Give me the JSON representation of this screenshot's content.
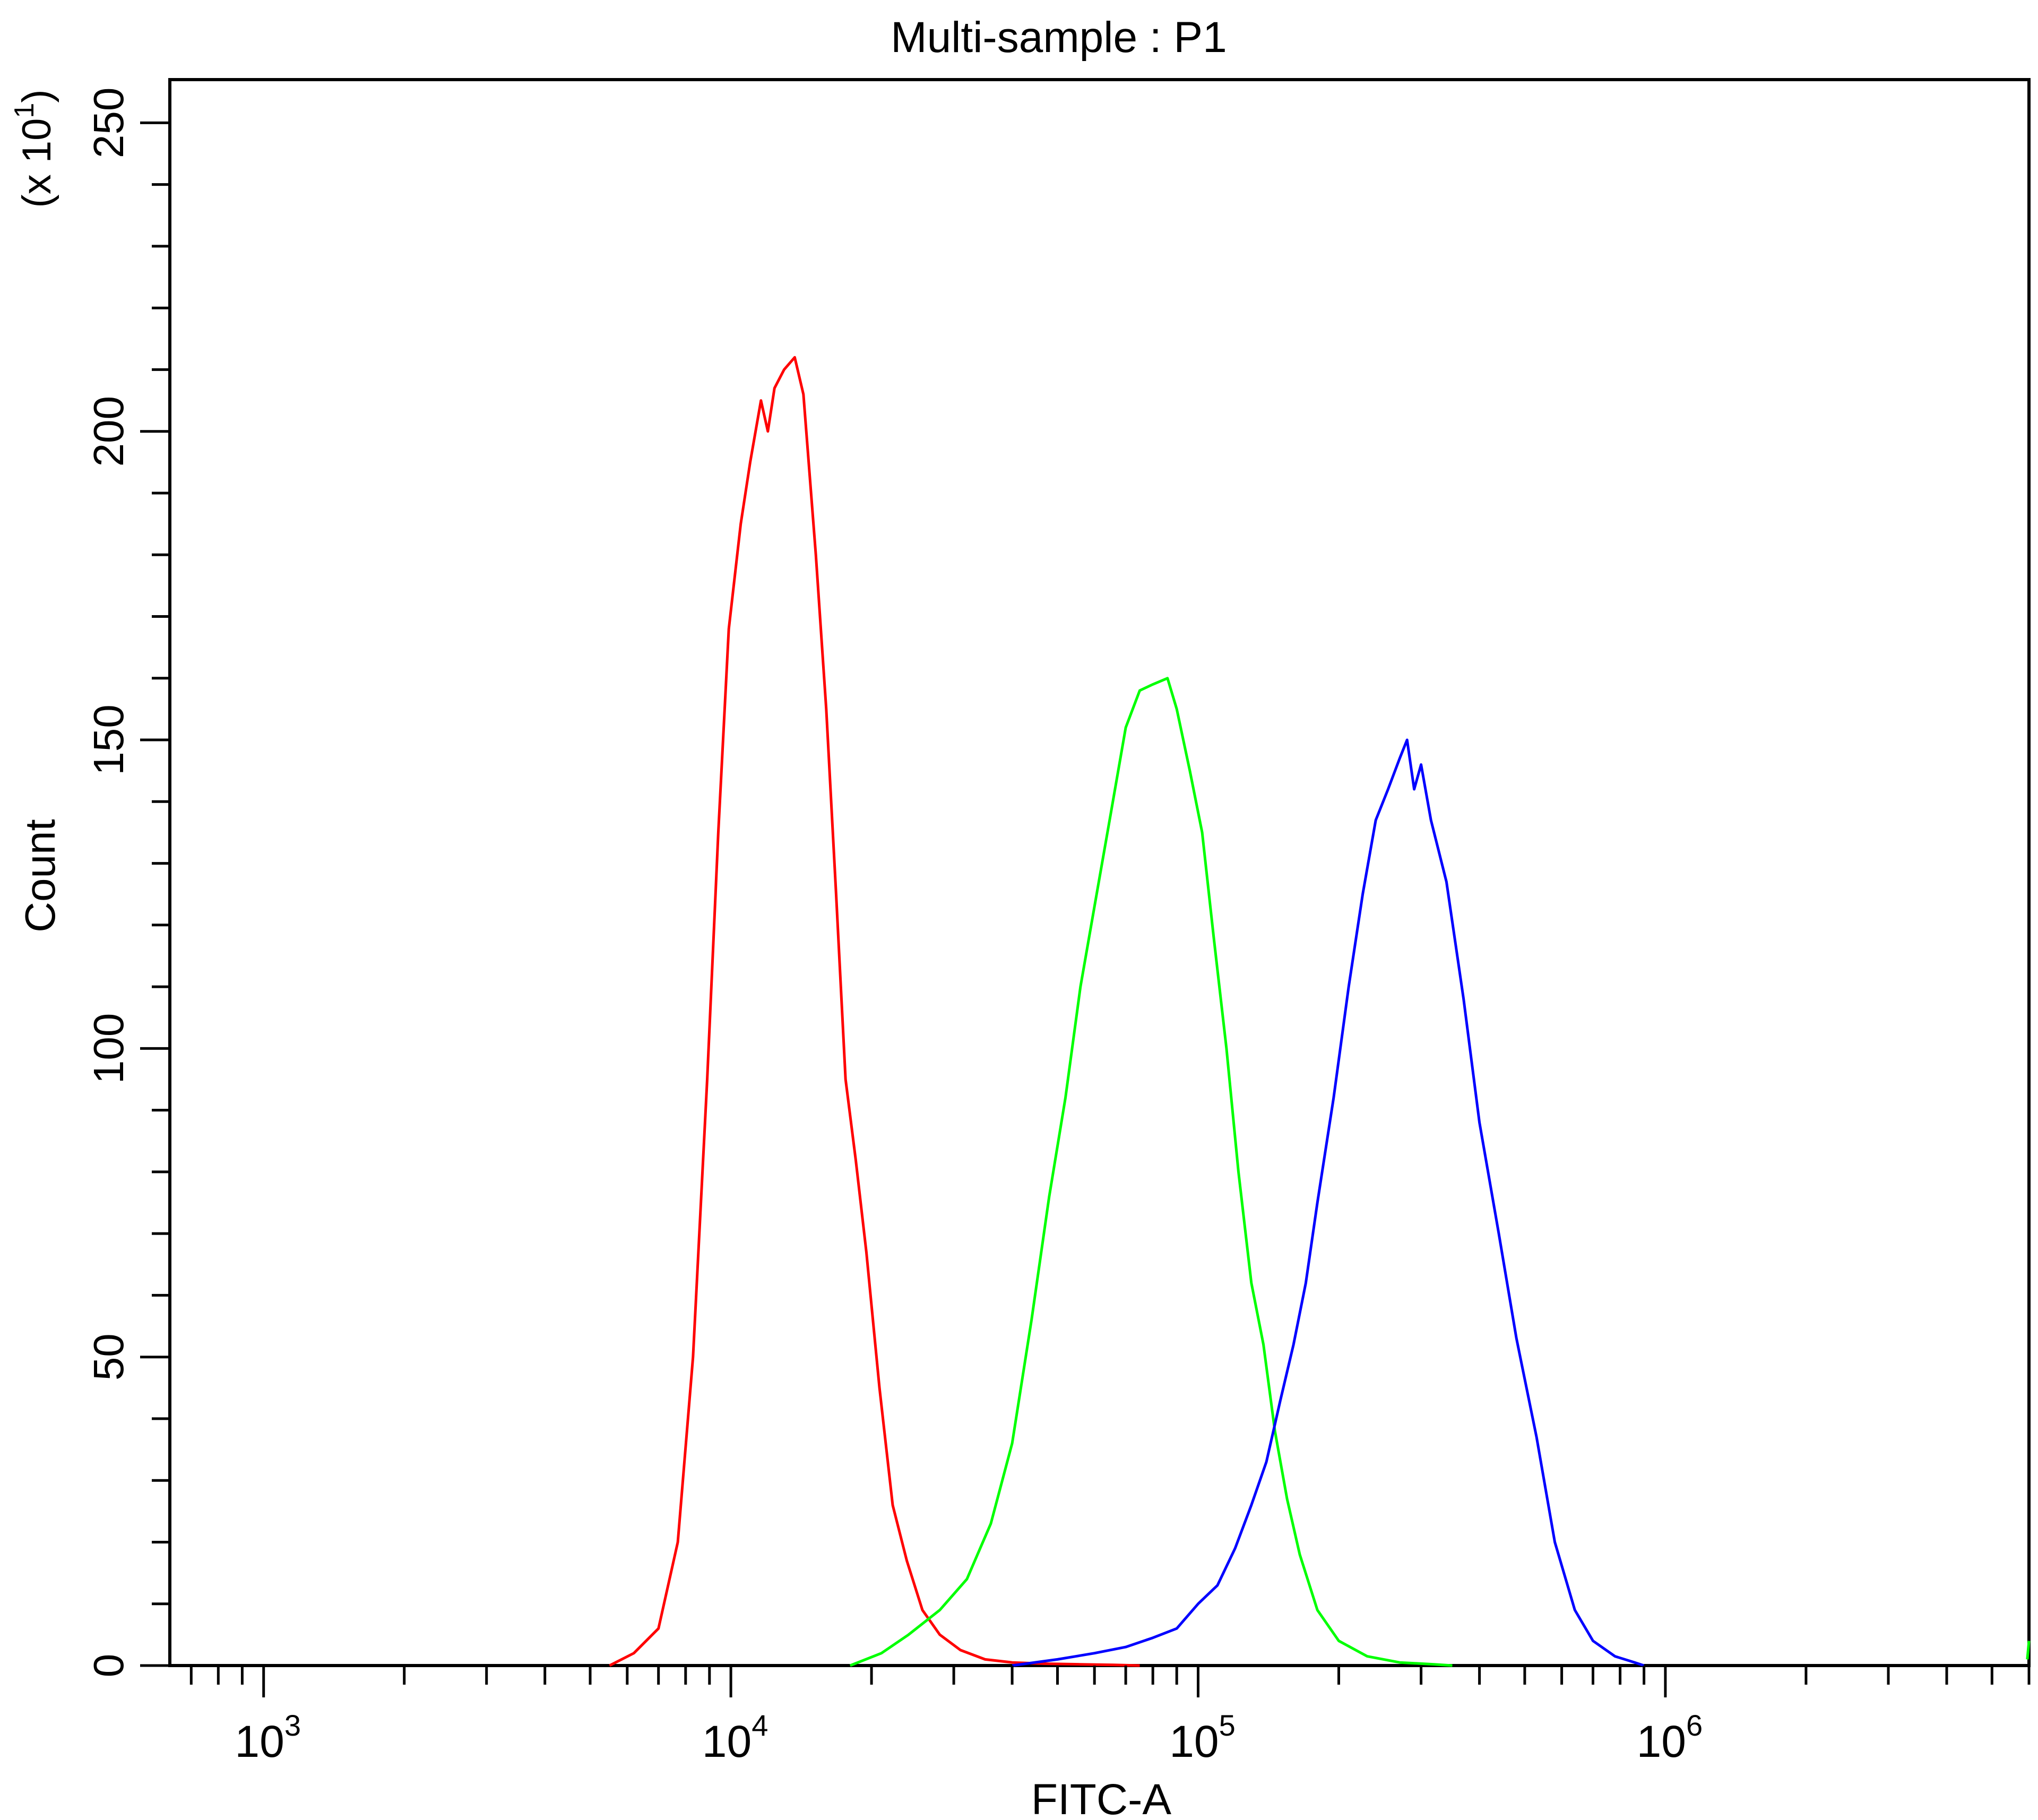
{
  "chart_data": {
    "type": "line",
    "title": "Multi-sample : P1",
    "xlabel": "FITC-A",
    "ylabel": "Count",
    "y_multiplier": "(x 10",
    "y_multiplier_exp": "1",
    "y_multiplier_close": ")",
    "x_scale": "log",
    "xlim": [
      630,
      6000000
    ],
    "ylim": [
      0,
      257
    ],
    "x_major_ticks": [
      1000,
      10000,
      100000,
      1000000
    ],
    "x_tick_labels": [
      {
        "base": "10",
        "exp": "3"
      },
      {
        "base": "10",
        "exp": "4"
      },
      {
        "base": "10",
        "exp": "5"
      },
      {
        "base": "10",
        "exp": "6"
      }
    ],
    "y_ticks": [
      0,
      50,
      100,
      150,
      200,
      250
    ],
    "y_tick_labels": [
      "0",
      "50",
      "100",
      "150",
      "200",
      "250"
    ],
    "grid": false,
    "series": [
      {
        "color": "#ff0000",
        "x": [
          5500,
          6200,
          7000,
          7700,
          8300,
          8900,
          9400,
          9900,
          10500,
          11000,
          11600,
          12000,
          12400,
          13000,
          13700,
          14300,
          15200,
          16000,
          16800,
          17600,
          18500,
          19500,
          20800,
          22200,
          23800,
          25700,
          28000,
          31000,
          35000,
          40000,
          47000,
          56000,
          66000,
          75000
        ],
        "y": [
          0,
          2,
          6,
          20,
          50,
          95,
          135,
          168,
          185,
          195,
          205,
          200,
          207,
          210,
          212,
          206,
          180,
          155,
          125,
          95,
          82,
          67,
          45,
          26,
          17,
          9,
          5,
          2.5,
          1,
          0.5,
          0.3,
          0.2,
          0.1,
          0
        ]
      },
      {
        "color": "#00ff00",
        "x": [
          18000,
          21000,
          24000,
          28000,
          32000,
          36000,
          40000,
          44000,
          48000,
          52000,
          56000,
          60000,
          65000,
          70000,
          75000,
          80000,
          86000,
          90000,
          96000,
          102000,
          108000,
          115000,
          122000,
          130000,
          138000,
          146000,
          155000,
          165000,
          180000,
          200000,
          230000,
          270000,
          320000,
          350000
        ],
        "y": [
          0,
          2,
          5,
          9,
          14,
          23,
          36,
          56,
          76,
          92,
          110,
          123,
          138,
          152,
          158,
          159,
          160,
          155,
          145,
          135,
          118,
          100,
          80,
          62,
          52,
          38,
          27,
          18,
          9,
          4,
          1.5,
          0.5,
          0.2,
          0
        ]
      },
      {
        "color": "#0000ff",
        "x": [
          40000,
          50000,
          60000,
          70000,
          80000,
          90000,
          100000,
          110000,
          120000,
          130000,
          140000,
          150000,
          160000,
          170000,
          180000,
          195000,
          210000,
          225000,
          240000,
          255000,
          270000,
          280000,
          290000,
          300000,
          315000,
          340000,
          370000,
          400000,
          440000,
          480000,
          530000,
          580000,
          640000,
          700000,
          780000,
          860000,
          900000
        ],
        "y": [
          0,
          1,
          2,
          3,
          4.5,
          6,
          10,
          13,
          19,
          26,
          33,
          43,
          52,
          62,
          75,
          92,
          110,
          125,
          137,
          142,
          147,
          150,
          142,
          146,
          137,
          127,
          108,
          88,
          70,
          53,
          37,
          20,
          9,
          4,
          1.5,
          0.5,
          0
        ]
      },
      {
        "color": "#00ff00",
        "x": [
          5950000,
          6000000
        ],
        "y": [
          1,
          4
        ]
      }
    ]
  }
}
